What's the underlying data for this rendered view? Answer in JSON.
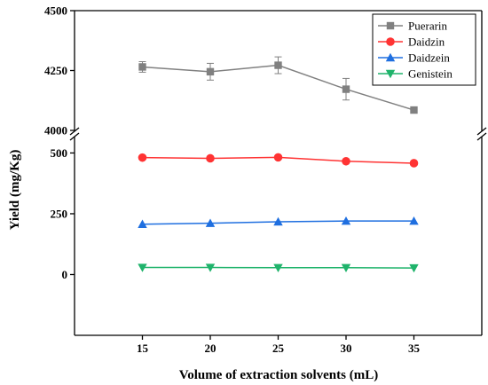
{
  "chart_data": {
    "type": "line",
    "title": "",
    "xlabel": "Volume of extraction solvents (mL)",
    "ylabel": "Yield (mg/Kg)",
    "x": [
      15,
      20,
      25,
      30,
      35
    ],
    "xlim": [
      10,
      40
    ],
    "x_ticks": [
      "15",
      "20",
      "25",
      "30",
      "35"
    ],
    "broken_y_axis": true,
    "y_upper_segment": {
      "ylim": [
        4000,
        4500
      ],
      "ticks": [
        "4000",
        "4250",
        "4500"
      ]
    },
    "y_lower_segment": {
      "ylim": [
        -250,
        560
      ],
      "ticks": [
        "0",
        "250",
        "500"
      ]
    },
    "legend_position": "top-right",
    "grid": false,
    "series": [
      {
        "name": "Puerarin",
        "color": "#808080",
        "marker": "square",
        "segment": "upper",
        "values": [
          4265,
          4245,
          4272,
          4172,
          4085
        ],
        "errors": [
          22,
          35,
          35,
          45,
          0
        ]
      },
      {
        "name": "Daidzin",
        "color": "#ff3333",
        "marker": "circle",
        "segment": "lower",
        "values": [
          481,
          478,
          482,
          466,
          458
        ]
      },
      {
        "name": "Daidzein",
        "color": "#1f6fe0",
        "marker": "triangle-up",
        "segment": "lower",
        "values": [
          207,
          211,
          217,
          220,
          220
        ]
      },
      {
        "name": "Genistein",
        "color": "#1fb36b",
        "marker": "triangle-down",
        "segment": "lower",
        "values": [
          29,
          29,
          28,
          28,
          27
        ]
      }
    ]
  }
}
